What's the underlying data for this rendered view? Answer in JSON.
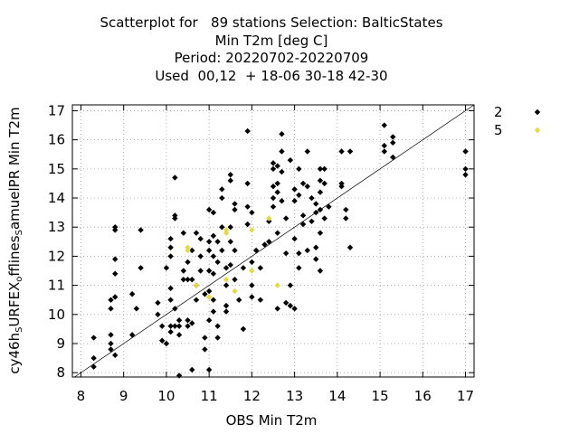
{
  "chart_data": {
    "type": "scatter",
    "title_lines": [
      "Scatterplot for   89 stations Selection: BalticStates",
      "Min T2m [deg C]",
      "Period: 20220702-20220709",
      "Used  00,12  + 18-06 30-18 42-30"
    ],
    "xlabel": "OBS Min T2m",
    "ylabel_parts": [
      "cy46h",
      "S",
      "URFEX",
      "o",
      "fflines",
      "S",
      "amuelPR Min T2m"
    ],
    "xlim": [
      7.8,
      17.2
    ],
    "ylim": [
      7.85,
      17.2
    ],
    "xticks": [
      "8",
      "9",
      "10",
      "11",
      "12",
      "13",
      "14",
      "15",
      "16",
      "17"
    ],
    "yticks": [
      "8",
      "9",
      "10",
      "11",
      "12",
      "13",
      "14",
      "15",
      "16",
      "17"
    ],
    "diagonal": true,
    "legend_position": "right",
    "series": [
      {
        "name": "2",
        "color": "#000000",
        "points": [
          [
            8.3,
            8.5
          ],
          [
            8.3,
            8.2
          ],
          [
            8.3,
            9.2
          ],
          [
            8.7,
            8.8
          ],
          [
            8.7,
            9.0
          ],
          [
            8.7,
            9.3
          ],
          [
            8.8,
            8.6
          ],
          [
            8.7,
            10.5
          ],
          [
            8.8,
            10.6
          ],
          [
            8.7,
            10.2
          ],
          [
            8.8,
            11.4
          ],
          [
            8.8,
            11.9
          ],
          [
            8.8,
            12.9
          ],
          [
            8.8,
            13.0
          ],
          [
            9.2,
            9.3
          ],
          [
            9.2,
            10.7
          ],
          [
            9.3,
            10.2
          ],
          [
            9.4,
            11.6
          ],
          [
            9.4,
            12.9
          ],
          [
            9.8,
            10.4
          ],
          [
            9.8,
            10.0
          ],
          [
            9.9,
            9.1
          ],
          [
            9.9,
            9.6
          ],
          [
            10.0,
            9.0
          ],
          [
            10.0,
            11.6
          ],
          [
            10.1,
            9.6
          ],
          [
            10.1,
            9.4
          ],
          [
            10.1,
            10.9
          ],
          [
            10.1,
            10.5
          ],
          [
            10.1,
            12.0
          ],
          [
            10.1,
            12.3
          ],
          [
            10.1,
            12.6
          ],
          [
            10.2,
            9.6
          ],
          [
            10.2,
            10.2
          ],
          [
            10.2,
            13.3
          ],
          [
            10.2,
            13.4
          ],
          [
            10.2,
            14.7
          ],
          [
            10.3,
            9.6
          ],
          [
            10.3,
            9.8
          ],
          [
            10.3,
            9.3
          ],
          [
            10.3,
            7.9
          ],
          [
            10.4,
            12.8
          ],
          [
            10.4,
            11.2
          ],
          [
            10.4,
            11.5
          ],
          [
            10.5,
            11.8
          ],
          [
            10.5,
            11.2
          ],
          [
            10.5,
            9.8
          ],
          [
            10.5,
            9.6
          ],
          [
            10.6,
            8.1
          ],
          [
            10.6,
            11.2
          ],
          [
            10.6,
            12.2
          ],
          [
            10.6,
            9.7
          ],
          [
            10.7,
            12.8
          ],
          [
            10.7,
            11.0
          ],
          [
            10.7,
            10.5
          ],
          [
            10.8,
            12.6
          ],
          [
            10.8,
            12.0
          ],
          [
            10.8,
            11.5
          ],
          [
            10.9,
            10.7
          ],
          [
            10.9,
            9.2
          ],
          [
            10.9,
            8.8
          ],
          [
            11.0,
            8.1
          ],
          [
            11.0,
            9.8
          ],
          [
            11.0,
            10.8
          ],
          [
            11.0,
            11.5
          ],
          [
            11.0,
            12.2
          ],
          [
            11.0,
            12.5
          ],
          [
            11.0,
            13.6
          ],
          [
            11.1,
            13.5
          ],
          [
            11.1,
            12.7
          ],
          [
            11.1,
            12.0
          ],
          [
            11.1,
            11.4
          ],
          [
            11.1,
            10.5
          ],
          [
            11.1,
            10.1
          ],
          [
            11.2,
            11.8
          ],
          [
            11.2,
            9.6
          ],
          [
            11.2,
            9.2
          ],
          [
            11.2,
            12.5
          ],
          [
            11.3,
            13.0
          ],
          [
            11.3,
            14.0
          ],
          [
            11.3,
            14.3
          ],
          [
            11.3,
            12.2
          ],
          [
            11.4,
            11.6
          ],
          [
            11.4,
            11.0
          ],
          [
            11.4,
            10.3
          ],
          [
            11.4,
            10.1
          ],
          [
            11.5,
            13.0
          ],
          [
            11.5,
            12.5
          ],
          [
            11.5,
            11.7
          ],
          [
            11.5,
            14.6
          ],
          [
            11.5,
            14.8
          ],
          [
            11.6,
            13.8
          ],
          [
            11.6,
            13.6
          ],
          [
            11.6,
            12.2
          ],
          [
            11.6,
            11.2
          ],
          [
            11.7,
            10.5
          ],
          [
            11.8,
            9.5
          ],
          [
            11.8,
            11.6
          ],
          [
            11.9,
            16.3
          ],
          [
            11.9,
            14.5
          ],
          [
            11.9,
            13.7
          ],
          [
            11.9,
            13.1
          ],
          [
            12.0,
            13.5
          ],
          [
            12.0,
            11.8
          ],
          [
            12.0,
            11.0
          ],
          [
            12.0,
            10.6
          ],
          [
            12.1,
            12.2
          ],
          [
            12.2,
            11.6
          ],
          [
            12.2,
            10.5
          ],
          [
            12.3,
            12.4
          ],
          [
            12.4,
            13.2
          ],
          [
            12.4,
            12.5
          ],
          [
            12.5,
            15.2
          ],
          [
            12.5,
            15.0
          ],
          [
            12.5,
            14.4
          ],
          [
            12.5,
            14.0
          ],
          [
            12.5,
            13.7
          ],
          [
            12.6,
            14.5
          ],
          [
            12.6,
            14.2
          ],
          [
            12.6,
            15.1
          ],
          [
            12.6,
            12.8
          ],
          [
            12.6,
            10.2
          ],
          [
            12.7,
            16.2
          ],
          [
            12.7,
            15.6
          ],
          [
            12.7,
            14.9
          ],
          [
            12.7,
            13.9
          ],
          [
            12.8,
            13.3
          ],
          [
            12.8,
            12.1
          ],
          [
            12.8,
            10.4
          ],
          [
            12.9,
            15.3
          ],
          [
            12.9,
            11.0
          ],
          [
            12.9,
            10.3
          ],
          [
            13.0,
            14.3
          ],
          [
            13.0,
            13.9
          ],
          [
            13.0,
            12.6
          ],
          [
            13.0,
            10.2
          ],
          [
            13.1,
            15.0
          ],
          [
            13.1,
            14.1
          ],
          [
            13.1,
            12.1
          ],
          [
            13.1,
            11.6
          ],
          [
            13.2,
            14.5
          ],
          [
            13.2,
            13.4
          ],
          [
            13.2,
            13.1
          ],
          [
            13.3,
            15.6
          ],
          [
            13.3,
            14.4
          ],
          [
            13.3,
            12.2
          ],
          [
            13.4,
            14.0
          ],
          [
            13.4,
            13.2
          ],
          [
            13.5,
            13.8
          ],
          [
            13.5,
            13.5
          ],
          [
            13.5,
            12.3
          ],
          [
            13.5,
            11.9
          ],
          [
            13.6,
            15.0
          ],
          [
            13.6,
            14.6
          ],
          [
            13.6,
            14.2
          ],
          [
            13.6,
            13.6
          ],
          [
            13.6,
            12.8
          ],
          [
            13.6,
            11.5
          ],
          [
            13.7,
            15.0
          ],
          [
            13.7,
            14.5
          ],
          [
            13.7,
            13.3
          ],
          [
            13.8,
            13.7
          ],
          [
            14.1,
            14.5
          ],
          [
            14.1,
            14.4
          ],
          [
            14.1,
            15.6
          ],
          [
            14.2,
            13.6
          ],
          [
            14.2,
            13.3
          ],
          [
            14.3,
            15.6
          ],
          [
            14.3,
            12.3
          ],
          [
            15.1,
            16.5
          ],
          [
            15.1,
            15.8
          ],
          [
            15.1,
            15.6
          ],
          [
            15.3,
            15.9
          ],
          [
            15.3,
            16.1
          ],
          [
            15.3,
            15.4
          ],
          [
            17.0,
            15.6
          ],
          [
            17.0,
            15.0
          ],
          [
            17.0,
            14.8
          ]
        ]
      },
      {
        "name": "5",
        "color": "#e6d84a",
        "points": [
          [
            10.5,
            12.3
          ],
          [
            10.5,
            12.2
          ],
          [
            10.7,
            11.0
          ],
          [
            11.0,
            10.6
          ],
          [
            11.4,
            11.2
          ],
          [
            11.4,
            12.8
          ],
          [
            11.4,
            12.9
          ],
          [
            11.6,
            10.8
          ],
          [
            12.0,
            11.5
          ],
          [
            12.0,
            12.9
          ],
          [
            12.4,
            13.3
          ],
          [
            12.6,
            11.0
          ]
        ]
      }
    ]
  }
}
